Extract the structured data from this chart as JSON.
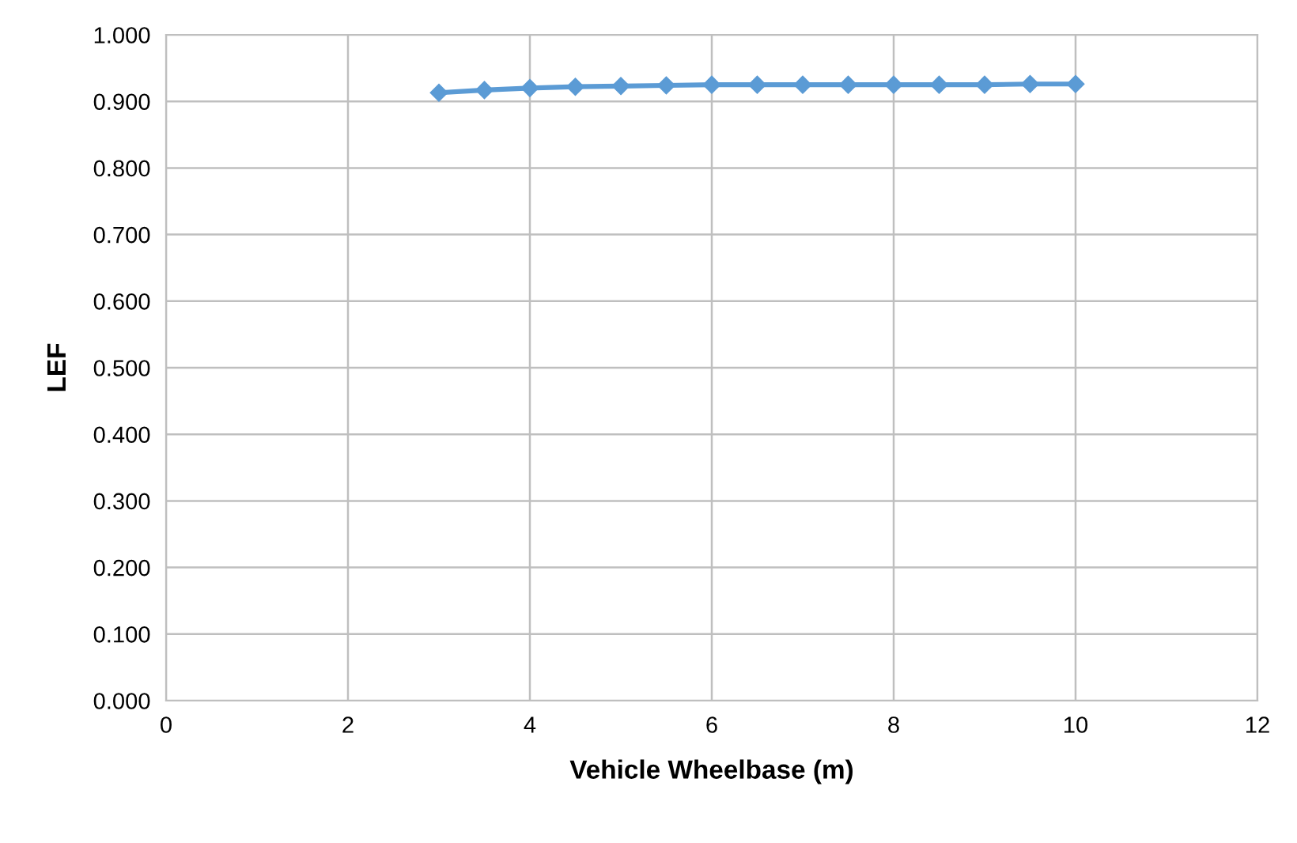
{
  "chart_data": {
    "type": "line",
    "xlabel": "Vehicle Wheelbase (m)",
    "ylabel": "LEF",
    "x": [
      3,
      3.5,
      4,
      4.5,
      5,
      5.5,
      6,
      6.5,
      7,
      7.5,
      8,
      8.5,
      9,
      9.5,
      10
    ],
    "series": [
      {
        "color": "#5b9bd5",
        "values": [
          0.913,
          0.917,
          0.92,
          0.922,
          0.923,
          0.924,
          0.925,
          0.925,
          0.925,
          0.925,
          0.925,
          0.925,
          0.925,
          0.926,
          0.926
        ]
      }
    ],
    "xlim": [
      0,
      12
    ],
    "xticks": [
      0,
      2,
      4,
      6,
      8,
      10,
      12
    ],
    "ylim": [
      0,
      1
    ],
    "yticks": [
      {
        "value": 0,
        "label": "0.000"
      },
      {
        "value": 0.1,
        "label": "0.100"
      },
      {
        "value": 0.2,
        "label": "0.200"
      },
      {
        "value": 0.3,
        "label": "0.300"
      },
      {
        "value": 0.4,
        "label": "0.400"
      },
      {
        "value": 0.5,
        "label": "0.500"
      },
      {
        "value": 0.6,
        "label": "0.600"
      },
      {
        "value": 0.7,
        "label": "0.700"
      },
      {
        "value": 0.8,
        "label": "0.800"
      },
      {
        "value": 0.9,
        "label": "0.900"
      },
      {
        "value": 1,
        "label": "1.000"
      }
    ],
    "grid": true,
    "marker": "diamond",
    "line_style": "solid"
  }
}
